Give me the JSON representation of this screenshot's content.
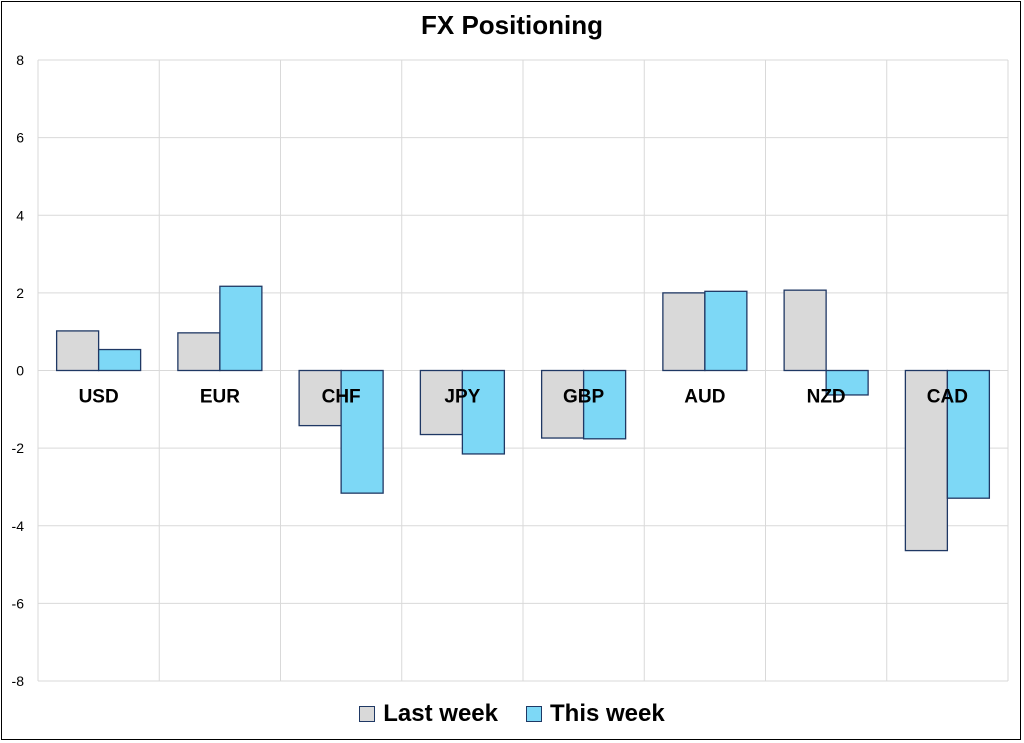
{
  "chart_data": {
    "type": "bar",
    "title": "FX Positioning",
    "xlabel": "",
    "ylabel": "",
    "categories": [
      "USD",
      "EUR",
      "CHF",
      "JPY",
      "GBP",
      "AUD",
      "NZD",
      "CAD"
    ],
    "series": [
      {
        "name": "Last week",
        "color": "#d9d9d9",
        "values": [
          1.02,
          0.97,
          -1.42,
          -1.65,
          -1.74,
          2.0,
          2.07,
          -4.64
        ]
      },
      {
        "name": "This week",
        "color": "#7dd8f6",
        "values": [
          0.54,
          2.17,
          -3.16,
          -2.15,
          -1.76,
          2.04,
          -0.63,
          -3.29
        ]
      }
    ],
    "ylim": [
      -8,
      8
    ],
    "yticks": [
      8,
      6,
      4,
      2,
      0,
      -2,
      -4,
      -6,
      -8
    ],
    "ytick_labels": [
      "8",
      "6",
      "4",
      "2",
      "0",
      "-2",
      "-4",
      "-6",
      "-8"
    ],
    "grid": true,
    "legend_position": "bottom",
    "bar_border_color": "#1f3864"
  }
}
